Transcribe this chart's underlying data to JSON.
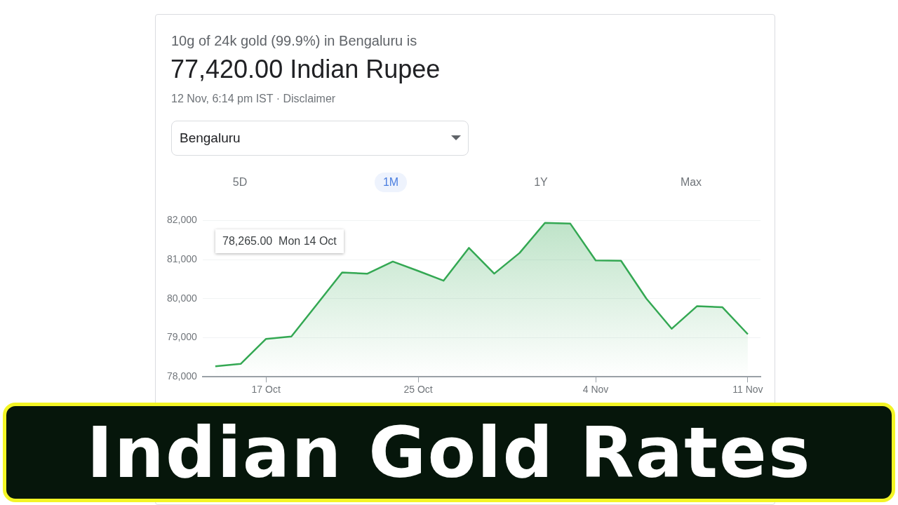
{
  "chart_data": {
    "type": "area",
    "title": "77,420.00 Indian Rupee",
    "subtitle": "10g of 24k gold (99.9%) in Bengaluru is",
    "annotations": [
      "12 Nov, 6:14 pm IST · Disclaimer",
      "Bengaluru",
      "5D",
      "1M",
      "1Y",
      "Max",
      "Indian Gold Rates",
      "78,265.00  Mon 14 Oct"
    ],
    "categories": [
      null,
      null,
      "17 Oct",
      null,
      null,
      null,
      null,
      null,
      "25 Oct",
      null,
      null,
      null,
      null,
      null,
      null,
      "4 Nov",
      null,
      null,
      null,
      null,
      null,
      "11 Nov"
    ],
    "series": [
      {
        "color": "#34a853",
        "values": [
          78270,
          78330,
          78970,
          79030,
          79850,
          80670,
          80640,
          80950,
          80710,
          80460,
          81300,
          80640,
          81170,
          81940,
          81920,
          80980,
          80970,
          80000,
          79230,
          79810,
          79780,
          79090
        ]
      }
    ],
    "ylim": [
      78000,
      82000
    ],
    "yticks": [
      {
        "value": 78000,
        "label": "78,000"
      },
      {
        "value": 79000,
        "label": "79,000"
      },
      {
        "value": 80000,
        "label": "80,000"
      },
      {
        "value": 81000,
        "label": "81,000"
      },
      {
        "value": 82000,
        "label": "82,000"
      }
    ],
    "grid": "y",
    "legend": false,
    "marker": "none"
  }
}
